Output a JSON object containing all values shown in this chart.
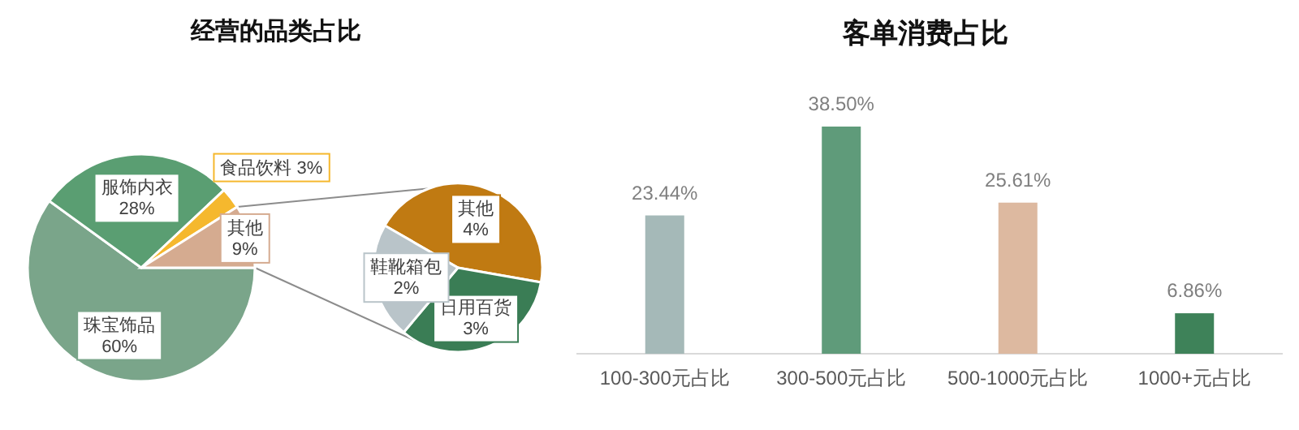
{
  "chart_data": [
    {
      "type": "pie",
      "title": "经营的品类占比",
      "categories": [
        "珠宝饰品",
        "服饰内衣",
        "食品饮料",
        "其他"
      ],
      "values": [
        60,
        28,
        3,
        9
      ],
      "value_labels": [
        "60%",
        "28%",
        "3%",
        "9%"
      ],
      "colors": [
        "#7aa58a",
        "#5a9e72",
        "#f5b82e",
        "#d5ab90"
      ]
    },
    {
      "type": "pie",
      "categories": [
        "其他",
        "日用百货",
        "鞋靴箱包"
      ],
      "values": [
        4,
        3,
        2
      ],
      "value_labels": [
        "4%",
        "3%",
        "2%"
      ],
      "colors": [
        "#c07a12",
        "#3a7d55",
        "#b9c4c9"
      ]
    },
    {
      "type": "bar",
      "title": "客单消费占比",
      "categories": [
        "100-300元占比",
        "300-500元占比",
        "500-1000元占比",
        "1000+元占比"
      ],
      "values": [
        23.44,
        38.5,
        25.61,
        6.86
      ],
      "value_labels": [
        "23.44%",
        "38.50%",
        "25.61%",
        "6.86%"
      ],
      "colors": [
        "#a5b9b8",
        "#5f9b7a",
        "#ddb9a0",
        "#3e8259"
      ]
    }
  ]
}
